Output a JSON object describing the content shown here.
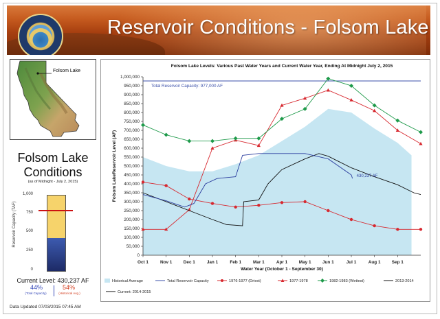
{
  "banner": {
    "title": "Reservoir Conditions - Folsom Lake"
  },
  "map": {
    "label": "Folsom Lake"
  },
  "sidebar": {
    "title": "Folsom Lake Conditions",
    "subtitle": "(as of Midnight - July 2, 2015)",
    "gauge_axis_label": "Reservoir Capacity (TAF)",
    "gauge_ticks": [
      "1,000",
      "750",
      "500",
      "250",
      "0"
    ],
    "gauge_level_fraction": 0.44,
    "historical_avg_fraction": 0.81,
    "current_level": "Current Level: 430,237 AF",
    "pct_capacity": "44%",
    "pct_capacity_label": "(Total Capacity)",
    "pct_average": "54%",
    "pct_average_label": "(Historical Avg.)"
  },
  "footer": {
    "text": "Data Updated 07/03/2015 07:45 AM"
  },
  "colors": {
    "historical_average": "#c6e6f2",
    "capacity_line": "#3a4fa8",
    "drought_7677": "#d7282f",
    "drought_7778": "#d7282f",
    "wettest_8283": "#1e9a4a",
    "y2013_2014": "#111111",
    "current_2014_2015": "#2b3d9e"
  },
  "chart_data": {
    "type": "line",
    "title": "Folsom Lake Levels: Various Past Water Years and Current Water Year, Ending At Midnight July 2, 2015",
    "xlabel": "Water Year (October 1 - September 30)",
    "ylabel": "Folsom LakeReservoir Level (AF)",
    "x_ticks": [
      "Oct 1",
      "Nov 1",
      "Dec 1",
      "Jan 1",
      "Feb 1",
      "Mar 1",
      "Apr 1",
      "May 1",
      "Jun 1",
      "Jul 1",
      "Aug 1",
      "Sep 1"
    ],
    "ylim": [
      0,
      1000000
    ],
    "y_ticks": [
      "0",
      "50,000",
      "100,000",
      "150,000",
      "200,000",
      "250,000",
      "300,000",
      "350,000",
      "400,000",
      "450,000",
      "500,000",
      "550,000",
      "600,000",
      "650,000",
      "700,000",
      "750,000",
      "800,000",
      "850,000",
      "900,000",
      "950,000",
      "1,000,000"
    ],
    "grid": false,
    "capacity": {
      "label": "Total Reservoir Capacity: 977,000 AF",
      "value": 977000
    },
    "current_label": "430,237 AF",
    "legend": [
      "Historical Average",
      "Total Reservoir Capacity",
      "1976-1977 (Driest)",
      "1977-1978",
      "1982-1983 (Wettest)",
      "2013-2014",
      "Current: 2014-2015"
    ],
    "historical_average": [
      {
        "x": 0,
        "y": 550000
      },
      {
        "x": 1,
        "y": 500000
      },
      {
        "x": 2,
        "y": 470000
      },
      {
        "x": 3,
        "y": 470000
      },
      {
        "x": 4,
        "y": 510000
      },
      {
        "x": 5,
        "y": 560000
      },
      {
        "x": 6,
        "y": 640000
      },
      {
        "x": 7,
        "y": 720000
      },
      {
        "x": 8,
        "y": 820000
      },
      {
        "x": 9,
        "y": 800000
      },
      {
        "x": 10,
        "y": 710000
      },
      {
        "x": 11,
        "y": 630000
      },
      {
        "x": 11.6,
        "y": 560000
      }
    ],
    "series": [
      {
        "name": "1976-1977 (Driest)",
        "marker": "circle",
        "points": [
          {
            "x": 0,
            "y": 410000
          },
          {
            "x": 1,
            "y": 390000
          },
          {
            "x": 2,
            "y": 315000
          },
          {
            "x": 3,
            "y": 290000
          },
          {
            "x": 4,
            "y": 270000
          },
          {
            "x": 5,
            "y": 280000
          },
          {
            "x": 6,
            "y": 295000
          },
          {
            "x": 7,
            "y": 300000
          },
          {
            "x": 8,
            "y": 250000
          },
          {
            "x": 9,
            "y": 200000
          },
          {
            "x": 10,
            "y": 165000
          },
          {
            "x": 11,
            "y": 145000
          },
          {
            "x": 12,
            "y": 145000
          }
        ]
      },
      {
        "name": "1977-1978",
        "marker": "triangle",
        "points": [
          {
            "x": 0,
            "y": 145000
          },
          {
            "x": 1,
            "y": 145000
          },
          {
            "x": 2,
            "y": 255000
          },
          {
            "x": 3,
            "y": 600000
          },
          {
            "x": 4,
            "y": 645000
          },
          {
            "x": 5,
            "y": 615000
          },
          {
            "x": 6,
            "y": 840000
          },
          {
            "x": 7,
            "y": 880000
          },
          {
            "x": 8,
            "y": 925000
          },
          {
            "x": 9,
            "y": 870000
          },
          {
            "x": 10,
            "y": 810000
          },
          {
            "x": 11,
            "y": 700000
          },
          {
            "x": 12,
            "y": 625000
          }
        ]
      },
      {
        "name": "1982-1983 (Wettest)",
        "marker": "diamond",
        "points": [
          {
            "x": 0,
            "y": 730000
          },
          {
            "x": 1,
            "y": 675000
          },
          {
            "x": 2,
            "y": 640000
          },
          {
            "x": 3,
            "y": 640000
          },
          {
            "x": 4,
            "y": 655000
          },
          {
            "x": 5,
            "y": 655000
          },
          {
            "x": 6,
            "y": 765000
          },
          {
            "x": 7,
            "y": 820000
          },
          {
            "x": 8,
            "y": 990000
          },
          {
            "x": 9,
            "y": 950000
          },
          {
            "x": 10,
            "y": 840000
          },
          {
            "x": 11,
            "y": 755000
          },
          {
            "x": 12,
            "y": 690000
          }
        ]
      },
      {
        "name": "2013-2014",
        "marker": "none",
        "points": [
          {
            "x": 0,
            "y": 350000
          },
          {
            "x": 1,
            "y": 300000
          },
          {
            "x": 2,
            "y": 250000
          },
          {
            "x": 3,
            "y": 200000
          },
          {
            "x": 3.6,
            "y": 172000
          },
          {
            "x": 4.3,
            "y": 165000
          },
          {
            "x": 4.35,
            "y": 300000
          },
          {
            "x": 5,
            "y": 310000
          },
          {
            "x": 5.4,
            "y": 400000
          },
          {
            "x": 6,
            "y": 480000
          },
          {
            "x": 7,
            "y": 540000
          },
          {
            "x": 7.6,
            "y": 570000
          },
          {
            "x": 8,
            "y": 555000
          },
          {
            "x": 9,
            "y": 490000
          },
          {
            "x": 10,
            "y": 440000
          },
          {
            "x": 11,
            "y": 395000
          },
          {
            "x": 11.7,
            "y": 350000
          },
          {
            "x": 12,
            "y": 340000
          }
        ]
      },
      {
        "name": "Current: 2014-2015",
        "marker": "none",
        "points": [
          {
            "x": 0,
            "y": 340000
          },
          {
            "x": 1,
            "y": 305000
          },
          {
            "x": 1.8,
            "y": 270000
          },
          {
            "x": 2.2,
            "y": 290000
          },
          {
            "x": 2.7,
            "y": 400000
          },
          {
            "x": 3.2,
            "y": 430000
          },
          {
            "x": 4,
            "y": 440000
          },
          {
            "x": 4.3,
            "y": 560000
          },
          {
            "x": 5,
            "y": 570000
          },
          {
            "x": 6,
            "y": 570000
          },
          {
            "x": 7,
            "y": 570000
          },
          {
            "x": 8,
            "y": 540000
          },
          {
            "x": 9,
            "y": 450000
          },
          {
            "x": 9.05,
            "y": 430237
          }
        ]
      }
    ]
  }
}
